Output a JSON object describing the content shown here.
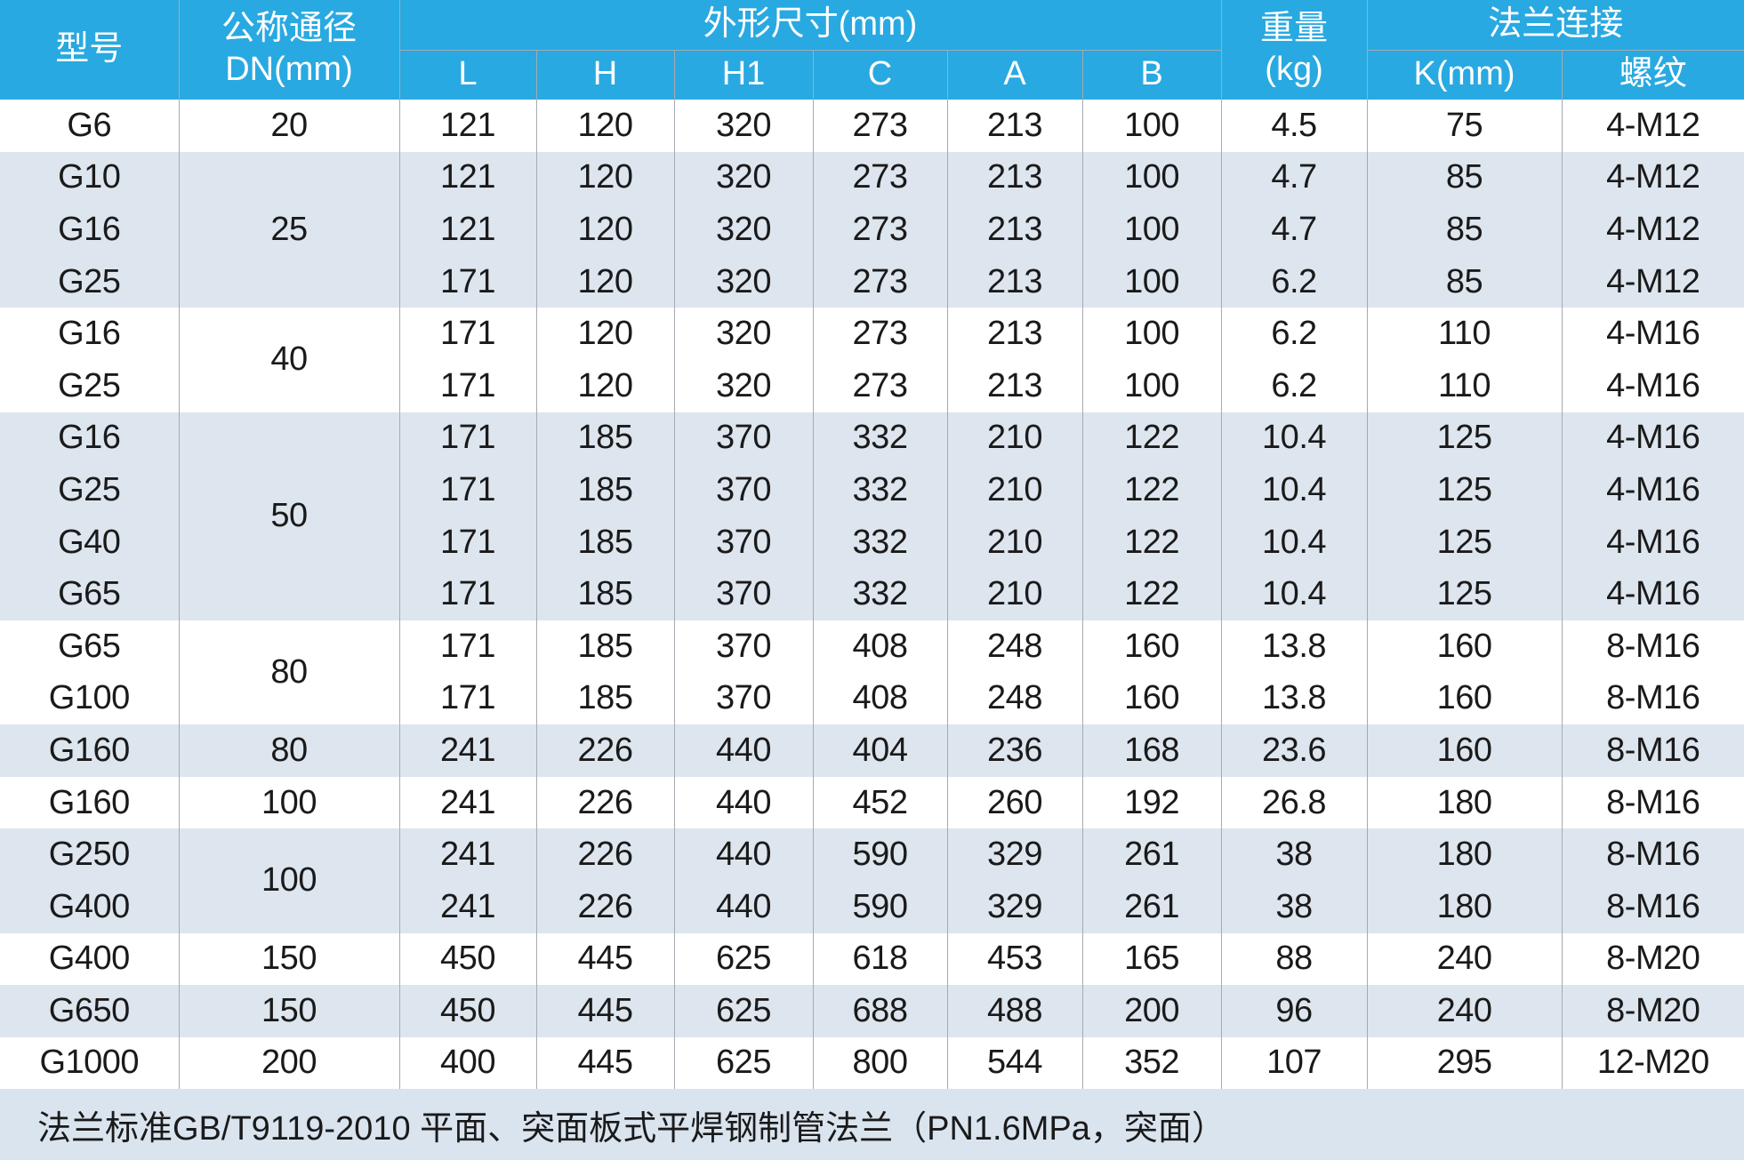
{
  "colors": {
    "header_bg": "#29a9e1",
    "header_text": "#ffffff",
    "stripe_bg": "#dde5ee",
    "footer_bg": "#dae4ef",
    "body_text": "#1a1a1a",
    "grid_line": "#a4abb2"
  },
  "table": {
    "header": {
      "model": "型号",
      "dn_line1": "公称通径",
      "dn_line2": "DN(mm)",
      "dims_group": "外形尺寸(mm)",
      "dims": [
        "L",
        "H",
        "H1",
        "C",
        "A",
        "B"
      ],
      "weight_line1": "重量",
      "weight_line2": "(kg)",
      "flange_group": "法兰连接",
      "flange_k": "K(mm)",
      "flange_thread": "螺纹"
    },
    "rows": [
      {
        "model": "G6",
        "dn": "20",
        "dn_span": 1,
        "dims": [
          "121",
          "120",
          "320",
          "273",
          "213",
          "100"
        ],
        "weight": "4.5",
        "k": "75",
        "thread": "4-M12",
        "shaded": false
      },
      {
        "model": "G10",
        "dn": "25",
        "dn_span": 3,
        "dims": [
          "121",
          "120",
          "320",
          "273",
          "213",
          "100"
        ],
        "weight": "4.7",
        "k": "85",
        "thread": "4-M12",
        "shaded": true
      },
      {
        "model": "G16",
        "dn": null,
        "dn_span": 0,
        "dims": [
          "121",
          "120",
          "320",
          "273",
          "213",
          "100"
        ],
        "weight": "4.7",
        "k": "85",
        "thread": "4-M12",
        "shaded": true
      },
      {
        "model": "G25",
        "dn": null,
        "dn_span": 0,
        "dims": [
          "171",
          "120",
          "320",
          "273",
          "213",
          "100"
        ],
        "weight": "6.2",
        "k": "85",
        "thread": "4-M12",
        "shaded": true
      },
      {
        "model": "G16",
        "dn": "40",
        "dn_span": 2,
        "dims": [
          "171",
          "120",
          "320",
          "273",
          "213",
          "100"
        ],
        "weight": "6.2",
        "k": "110",
        "thread": "4-M16",
        "shaded": false
      },
      {
        "model": "G25",
        "dn": null,
        "dn_span": 0,
        "dims": [
          "171",
          "120",
          "320",
          "273",
          "213",
          "100"
        ],
        "weight": "6.2",
        "k": "110",
        "thread": "4-M16",
        "shaded": false
      },
      {
        "model": "G16",
        "dn": "50",
        "dn_span": 4,
        "dims": [
          "171",
          "185",
          "370",
          "332",
          "210",
          "122"
        ],
        "weight": "10.4",
        "k": "125",
        "thread": "4-M16",
        "shaded": true
      },
      {
        "model": "G25",
        "dn": null,
        "dn_span": 0,
        "dims": [
          "171",
          "185",
          "370",
          "332",
          "210",
          "122"
        ],
        "weight": "10.4",
        "k": "125",
        "thread": "4-M16",
        "shaded": true
      },
      {
        "model": "G40",
        "dn": null,
        "dn_span": 0,
        "dims": [
          "171",
          "185",
          "370",
          "332",
          "210",
          "122"
        ],
        "weight": "10.4",
        "k": "125",
        "thread": "4-M16",
        "shaded": true
      },
      {
        "model": "G65",
        "dn": null,
        "dn_span": 0,
        "dims": [
          "171",
          "185",
          "370",
          "332",
          "210",
          "122"
        ],
        "weight": "10.4",
        "k": "125",
        "thread": "4-M16",
        "shaded": true
      },
      {
        "model": "G65",
        "dn": "80",
        "dn_span": 2,
        "dims": [
          "171",
          "185",
          "370",
          "408",
          "248",
          "160"
        ],
        "weight": "13.8",
        "k": "160",
        "thread": "8-M16",
        "shaded": false
      },
      {
        "model": "G100",
        "dn": null,
        "dn_span": 0,
        "dims": [
          "171",
          "185",
          "370",
          "408",
          "248",
          "160"
        ],
        "weight": "13.8",
        "k": "160",
        "thread": "8-M16",
        "shaded": false
      },
      {
        "model": "G160",
        "dn": "80",
        "dn_span": 1,
        "dims": [
          "241",
          "226",
          "440",
          "404",
          "236",
          "168"
        ],
        "weight": "23.6",
        "k": "160",
        "thread": "8-M16",
        "shaded": true
      },
      {
        "model": "G160",
        "dn": "100",
        "dn_span": 1,
        "dims": [
          "241",
          "226",
          "440",
          "452",
          "260",
          "192"
        ],
        "weight": "26.8",
        "k": "180",
        "thread": "8-M16",
        "shaded": false
      },
      {
        "model": "G250",
        "dn": "100",
        "dn_span": 2,
        "dims": [
          "241",
          "226",
          "440",
          "590",
          "329",
          "261"
        ],
        "weight": "38",
        "k": "180",
        "thread": "8-M16",
        "shaded": true
      },
      {
        "model": "G400",
        "dn": null,
        "dn_span": 0,
        "dims": [
          "241",
          "226",
          "440",
          "590",
          "329",
          "261"
        ],
        "weight": "38",
        "k": "180",
        "thread": "8-M16",
        "shaded": true
      },
      {
        "model": "G400",
        "dn": "150",
        "dn_span": 1,
        "dims": [
          "450",
          "445",
          "625",
          "618",
          "453",
          "165"
        ],
        "weight": "88",
        "k": "240",
        "thread": "8-M20",
        "shaded": false
      },
      {
        "model": "G650",
        "dn": "150",
        "dn_span": 1,
        "dims": [
          "450",
          "445",
          "625",
          "688",
          "488",
          "200"
        ],
        "weight": "96",
        "k": "240",
        "thread": "8-M20",
        "shaded": true
      },
      {
        "model": "G1000",
        "dn": "200",
        "dn_span": 1,
        "dims": [
          "400",
          "445",
          "625",
          "800",
          "544",
          "352"
        ],
        "weight": "107",
        "k": "295",
        "thread": "12-M20",
        "shaded": false
      }
    ],
    "footer_note": "法兰标准GB/T9119-2010 平面、突面板式平焊钢制管法兰（PN1.6MPa，突面）"
  }
}
